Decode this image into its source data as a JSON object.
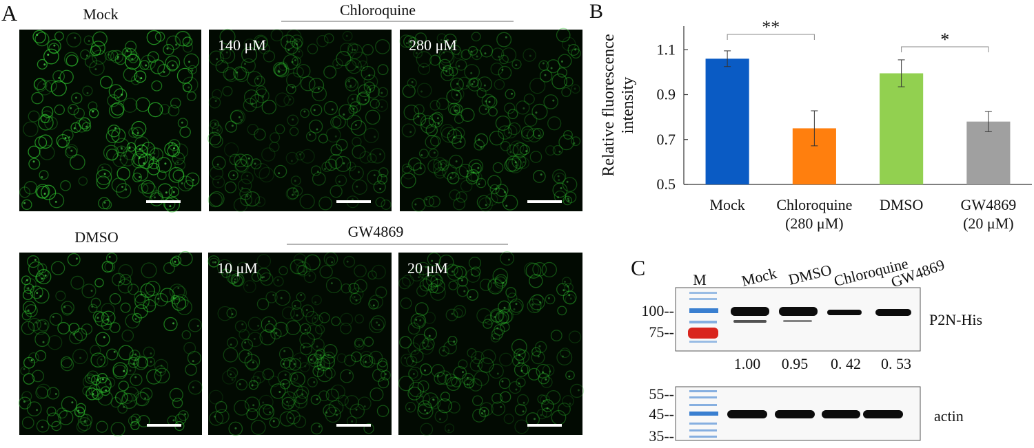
{
  "panel_a": {
    "label": "A",
    "images": [
      {
        "title": "Mock",
        "concentration": null
      },
      {
        "title": null,
        "concentration": "140 μM"
      },
      {
        "title": null,
        "concentration": "280 μM"
      },
      {
        "title": "DMSO",
        "concentration": null
      },
      {
        "title": null,
        "concentration": "10 μM"
      },
      {
        "title": null,
        "concentration": "20 μM"
      }
    ],
    "group_labels": [
      "Chloroquine",
      "GW4869"
    ]
  },
  "chart_data": {
    "type": "bar",
    "panel_label": "B",
    "y_label": [
      "Relative fluorescence",
      "intensity"
    ],
    "categories": [
      [
        "Mock"
      ],
      [
        "Chloroquine",
        "(280 μM)"
      ],
      [
        "DMSO"
      ],
      [
        "GW4869",
        "(20 μM)"
      ]
    ],
    "values": [
      1.06,
      0.75,
      0.995,
      0.78
    ],
    "errors": [
      0.035,
      0.078,
      0.06,
      0.045
    ],
    "colors": [
      "#0a5bc4",
      "#ff7f0e",
      "#92d050",
      "#a0a0a0"
    ],
    "ylim": [
      0.5,
      1.205
    ],
    "yticks": [
      0.5,
      0.7,
      0.9,
      1.1
    ],
    "annotations": [
      {
        "text": "**"
      },
      {
        "text": "*"
      }
    ]
  },
  "panel_c": {
    "label": "C",
    "marker_lane": "M",
    "lanes": [
      "Mock",
      "DMSO",
      "Chloroquine",
      "GW4869"
    ],
    "blot1_markers": [
      "100--",
      "75--"
    ],
    "blot1_target": "P2N-His",
    "quantification": [
      "1.00",
      "0.95",
      "0. 42",
      "0. 53"
    ],
    "blot2_markers": [
      "55--",
      "45--",
      "35--"
    ],
    "blot2_target": "actin"
  }
}
